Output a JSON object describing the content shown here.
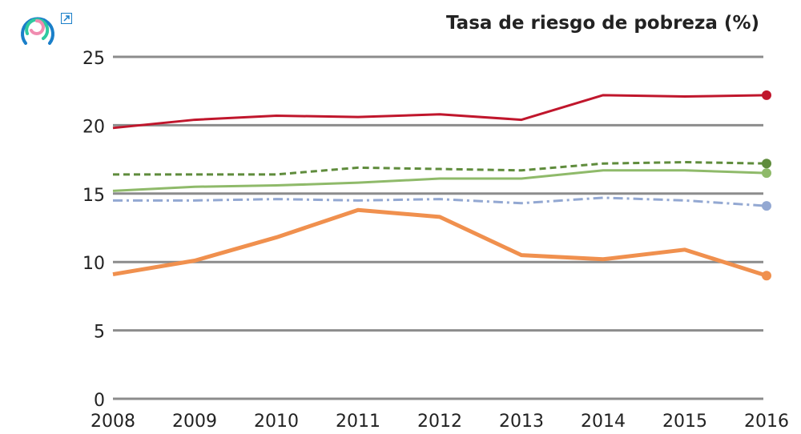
{
  "chart_data": {
    "type": "line",
    "title": "Tasa de riesgo de pobreza (%)",
    "xlabel": "",
    "ylabel": "",
    "x": [
      2008,
      2009,
      2010,
      2011,
      2012,
      2013,
      2014,
      2015,
      2016
    ],
    "ylim": [
      0,
      25
    ],
    "yticks": [
      0,
      5,
      10,
      15,
      20,
      25
    ],
    "grid": true,
    "series": [
      {
        "color": "#c0162c",
        "style": "solid",
        "values": [
          19.8,
          20.4,
          20.7,
          20.6,
          20.8,
          20.4,
          22.2,
          22.1,
          22.2
        ]
      },
      {
        "color": "#5f8c3c",
        "style": "dashed",
        "values": [
          16.4,
          16.4,
          16.4,
          16.9,
          16.8,
          16.7,
          17.2,
          17.3,
          17.2
        ]
      },
      {
        "color": "#8fba6a",
        "style": "solid",
        "values": [
          15.2,
          15.5,
          15.6,
          15.8,
          16.1,
          16.1,
          16.7,
          16.7,
          16.5
        ]
      },
      {
        "color": "#93a8d2",
        "style": "dashdot",
        "values": [
          14.5,
          14.5,
          14.6,
          14.5,
          14.6,
          14.3,
          14.7,
          14.5,
          14.1
        ]
      },
      {
        "color": "#f0904e",
        "style": "solid",
        "values": [
          9.1,
          10.1,
          11.8,
          13.8,
          13.3,
          10.5,
          10.2,
          10.9,
          9.0
        ]
      }
    ]
  },
  "icons": {
    "logo": "circular-rings-logo",
    "external": "external-link-icon"
  }
}
